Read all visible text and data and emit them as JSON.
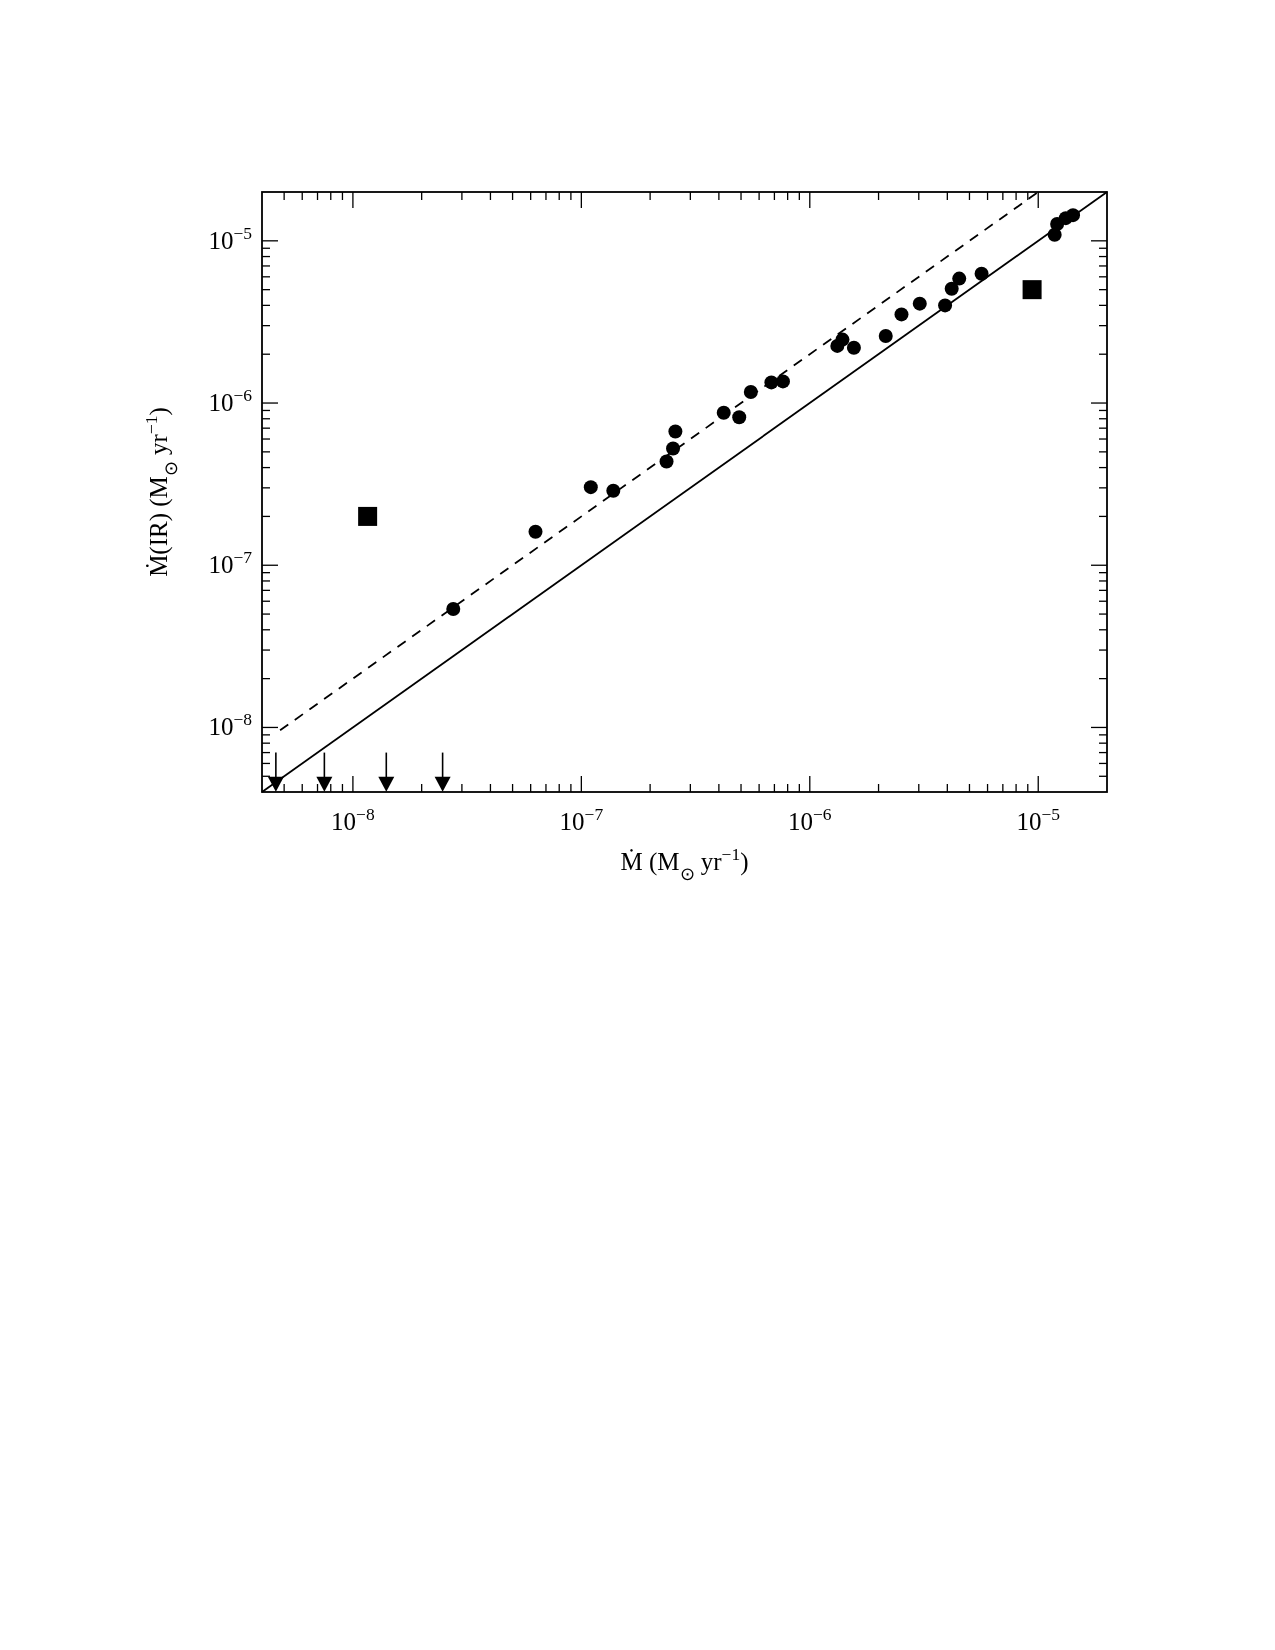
{
  "chart_data": {
    "type": "scatter",
    "xlabel": "Ṁ (M$_{⊙}$ yr$^{−1}$)",
    "ylabel": "Ṁ(IR) (M$_{⊙}$ yr$^{−1}$)",
    "log": "xy",
    "xlim": [
      4e-09,
      2e-05
    ],
    "ylim": [
      4e-09,
      2e-05
    ],
    "xticks": [
      {
        "value": 5e-09,
        "label": null
      },
      {
        "value": 6e-09,
        "label": null
      },
      {
        "value": 7e-09,
        "label": null
      },
      {
        "value": 8e-09,
        "label": null
      },
      {
        "value": 9e-09,
        "label": null
      },
      {
        "value": 1e-08,
        "label": "10$^{−8}$"
      },
      {
        "value": 2e-08,
        "label": null
      },
      {
        "value": 3e-08,
        "label": null
      },
      {
        "value": 4e-08,
        "label": null
      },
      {
        "value": 5e-08,
        "label": null
      },
      {
        "value": 6e-08,
        "label": null
      },
      {
        "value": 7e-08,
        "label": null
      },
      {
        "value": 8e-08,
        "label": null
      },
      {
        "value": 9e-08,
        "label": null
      },
      {
        "value": 1e-07,
        "label": "10$^{−7}$"
      },
      {
        "value": 2e-07,
        "label": null
      },
      {
        "value": 3e-07,
        "label": null
      },
      {
        "value": 4e-07,
        "label": null
      },
      {
        "value": 5e-07,
        "label": null
      },
      {
        "value": 6e-07,
        "label": null
      },
      {
        "value": 7e-07,
        "label": null
      },
      {
        "value": 8e-07,
        "label": null
      },
      {
        "value": 9e-07,
        "label": null
      },
      {
        "value": 1e-06,
        "label": "10$^{−6}$"
      },
      {
        "value": 2e-06,
        "label": null
      },
      {
        "value": 3e-06,
        "label": null
      },
      {
        "value": 4e-06,
        "label": null
      },
      {
        "value": 5e-06,
        "label": null
      },
      {
        "value": 6e-06,
        "label": null
      },
      {
        "value": 7e-06,
        "label": null
      },
      {
        "value": 8e-06,
        "label": null
      },
      {
        "value": 9e-06,
        "label": null
      },
      {
        "value": 1e-05,
        "label": "10$^{−5}$"
      }
    ],
    "yticks": [
      {
        "value": 5e-09,
        "label": null
      },
      {
        "value": 6e-09,
        "label": null
      },
      {
        "value": 7e-09,
        "label": null
      },
      {
        "value": 8e-09,
        "label": null
      },
      {
        "value": 9e-09,
        "label": null
      },
      {
        "value": 1e-08,
        "label": "10$^{−8}$"
      },
      {
        "value": 2e-08,
        "label": null
      },
      {
        "value": 3e-08,
        "label": null
      },
      {
        "value": 4e-08,
        "label": null
      },
      {
        "value": 5e-08,
        "label": null
      },
      {
        "value": 6e-08,
        "label": null
      },
      {
        "value": 7e-08,
        "label": null
      },
      {
        "value": 8e-08,
        "label": null
      },
      {
        "value": 9e-08,
        "label": null
      },
      {
        "value": 1e-07,
        "label": "10$^{−7}$"
      },
      {
        "value": 2e-07,
        "label": null
      },
      {
        "value": 3e-07,
        "label": null
      },
      {
        "value": 4e-07,
        "label": null
      },
      {
        "value": 5e-07,
        "label": null
      },
      {
        "value": 6e-07,
        "label": null
      },
      {
        "value": 7e-07,
        "label": null
      },
      {
        "value": 8e-07,
        "label": null
      },
      {
        "value": 9e-07,
        "label": null
      },
      {
        "value": 1e-06,
        "label": "10$^{−6}$"
      },
      {
        "value": 2e-06,
        "label": null
      },
      {
        "value": 3e-06,
        "label": null
      },
      {
        "value": 4e-06,
        "label": null
      },
      {
        "value": 5e-06,
        "label": null
      },
      {
        "value": 6e-06,
        "label": null
      },
      {
        "value": 7e-06,
        "label": null
      },
      {
        "value": 8e-06,
        "label": null
      },
      {
        "value": 9e-06,
        "label": null
      },
      {
        "value": 1e-05,
        "label": "10$^{−5}$"
      }
    ],
    "series": [
      {
        "type": "line",
        "color": "#000000",
        "line_style": "solid",
        "marker": "none",
        "x": [
          4e-09,
          2e-05
        ],
        "values": [
          4e-09,
          2e-05
        ]
      },
      {
        "type": "line",
        "color": "#000000",
        "line_style": "dashed",
        "marker": "none",
        "x": [
          4.8e-09,
          1e-05
        ],
        "values": [
          9.6e-09,
          2e-05
        ]
      },
      {
        "type": "scatter",
        "color": "#000000",
        "marker": "circle",
        "x": [
          2.75e-08,
          6.3e-08,
          1.1e-07,
          1.38e-07,
          2.36e-07,
          2.52e-07,
          2.58e-07,
          4.2e-07,
          4.91e-07,
          5.52e-07,
          6.79e-07,
          7.63e-07,
          1.32e-06,
          1.39e-06,
          1.56e-06,
          2.15e-06,
          2.52e-06,
          3.03e-06,
          3.91e-06,
          4.18e-06,
          4.51e-06,
          5.65e-06,
          1.18e-05,
          1.21e-05,
          1.32e-05,
          1.42e-05
        ],
        "values": [
          5.37e-08,
          1.61e-07,
          3.03e-07,
          2.88e-07,
          4.36e-07,
          5.25e-07,
          6.68e-07,
          8.71e-07,
          8.18e-07,
          1.17e-06,
          1.34e-06,
          1.36e-06,
          2.25e-06,
          2.46e-06,
          2.19e-06,
          2.59e-06,
          3.52e-06,
          4.1e-06,
          4e-06,
          5.06e-06,
          5.85e-06,
          6.27e-06,
          1.09e-05,
          1.27e-05,
          1.38e-05,
          1.44e-05
        ]
      },
      {
        "type": "scatter",
        "color": "#000000",
        "marker": "square",
        "x": [
          1.16e-08,
          9.4e-06
        ],
        "values": [
          2e-07,
          5e-06
        ]
      },
      {
        "type": "scatter",
        "color": "#000000",
        "marker": "triangle",
        "x": [
          4.6e-09,
          7.5e-09,
          1.4e-08,
          2.47e-08
        ],
        "values": [
          4.5e-09,
          4.5e-09,
          4.5e-09,
          4.5e-09
        ],
        "errors": [
          [
            4.5e-09,
            7e-09
          ],
          [
            4.5e-09,
            7e-09
          ],
          [
            4.5e-09,
            7e-09
          ],
          [
            4.5e-09,
            7e-09
          ]
        ]
      }
    ]
  }
}
